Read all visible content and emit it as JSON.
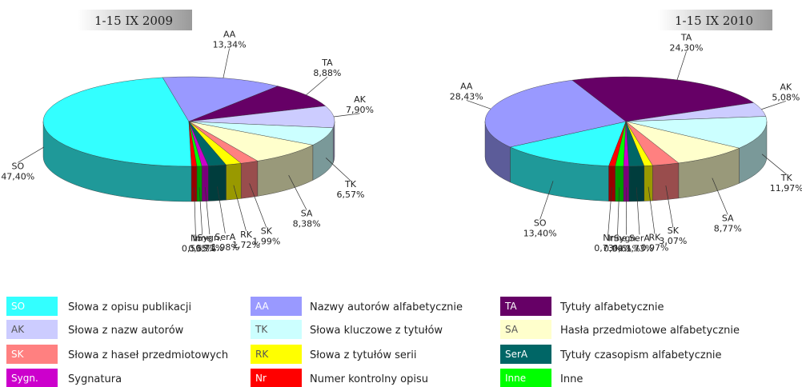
{
  "chart_data": [
    {
      "type": "pie",
      "title": "1-15 IX 2009",
      "categories": [
        "SO",
        "AA",
        "TA",
        "AK",
        "TK",
        "SA",
        "SK",
        "RK",
        "SerA",
        "Sygn.",
        "Inne",
        "Nr"
      ],
      "values": [
        47.4,
        13.34,
        8.88,
        7.9,
        6.57,
        8.38,
        1.99,
        1.72,
        1.98,
        0.71,
        0.55,
        0.59
      ],
      "value_labels": [
        "47,40%",
        "13,34%",
        "8,88%",
        "7,90%",
        "6,57%",
        "8,38%",
        "1,99%",
        "1,72%",
        "1,98%",
        "0,71%",
        "0,55%",
        "0,59%"
      ]
    },
    {
      "type": "pie",
      "title": "1-15 IX 2010",
      "categories": [
        "SO",
        "AA",
        "TA",
        "AK",
        "TK",
        "SA",
        "SK",
        "RK",
        "SerA",
        "Sygn.",
        "Inne",
        "Nr"
      ],
      "values": [
        13.4,
        28.43,
        24.3,
        5.08,
        11.97,
        8.77,
        3.07,
        0.97,
        1.73,
        0.61,
        0.94,
        0.73
      ],
      "value_labels": [
        "13,40%",
        "28,43%",
        "24,30%",
        "5,08%",
        "11,97%",
        "8,77%",
        "3,07%",
        "0,97%",
        "1,73%",
        "0,61%",
        "0,94%",
        "0,73%"
      ]
    }
  ],
  "legend": {
    "items": [
      {
        "code": "SO",
        "description": "Słowa z opisu publikacji",
        "color": "#33ffff"
      },
      {
        "code": "AA",
        "description": "Nazwy autorów alfabetycznie",
        "color": "#9999ff"
      },
      {
        "code": "TA",
        "description": "Tytuły alfabetycznie",
        "color": "#660066"
      },
      {
        "code": "AK",
        "description": "Słowa z nazw autorów",
        "color": "#ccccff"
      },
      {
        "code": "TK",
        "description": "Słowa kluczowe z tytułów",
        "color": "#ccffff"
      },
      {
        "code": "SA",
        "description": "Hasła przedmiotowe alfabetycznie",
        "color": "#ffffcc"
      },
      {
        "code": "SK",
        "description": "Słowa z haseł przedmiotowych",
        "color": "#ff8080"
      },
      {
        "code": "RK",
        "description": "Słowa z tytułów serii",
        "color": "#ffff00"
      },
      {
        "code": "SerA",
        "description": "Tytuły czasopism alfabetycznie",
        "color": "#006666"
      },
      {
        "code": "Sygn.",
        "description": "Sygnatura",
        "color": "#cc00cc"
      },
      {
        "code": "Nr",
        "description": "Numer kontrolny opisu",
        "color": "#ff0000"
      },
      {
        "code": "Inne",
        "description": "Inne",
        "color": "#00ff00"
      }
    ]
  }
}
